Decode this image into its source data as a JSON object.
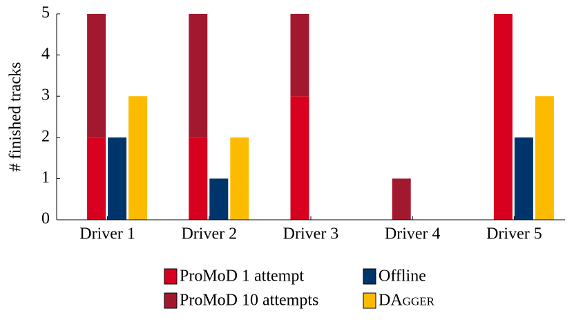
{
  "chart_data": {
    "type": "bar",
    "y_label": "# finished tracks",
    "categories": [
      "Driver 1",
      "Driver 2",
      "Driver 3",
      "Driver 4",
      "Driver 5"
    ],
    "series": [
      {
        "name": "ProMoD 1 attempt",
        "color": "#d7001f",
        "stack": "promod",
        "values": [
          2,
          2,
          3,
          0,
          5
        ]
      },
      {
        "name": "ProMoD 10 attempts",
        "color": "#a2192f",
        "stack": "promod",
        "values": [
          3,
          3,
          2,
          1,
          0
        ]
      },
      {
        "name": "Offline",
        "color": "#00356b",
        "stack": "offline",
        "values": [
          2,
          1,
          0,
          0,
          2
        ]
      },
      {
        "name": "DAgger",
        "color": "#fdbb00",
        "stack": "dagger",
        "values": [
          3,
          2,
          0,
          0,
          3
        ]
      }
    ],
    "ylim": [
      0,
      5
    ],
    "yticks": [
      0,
      1,
      2,
      3,
      4,
      5
    ]
  }
}
